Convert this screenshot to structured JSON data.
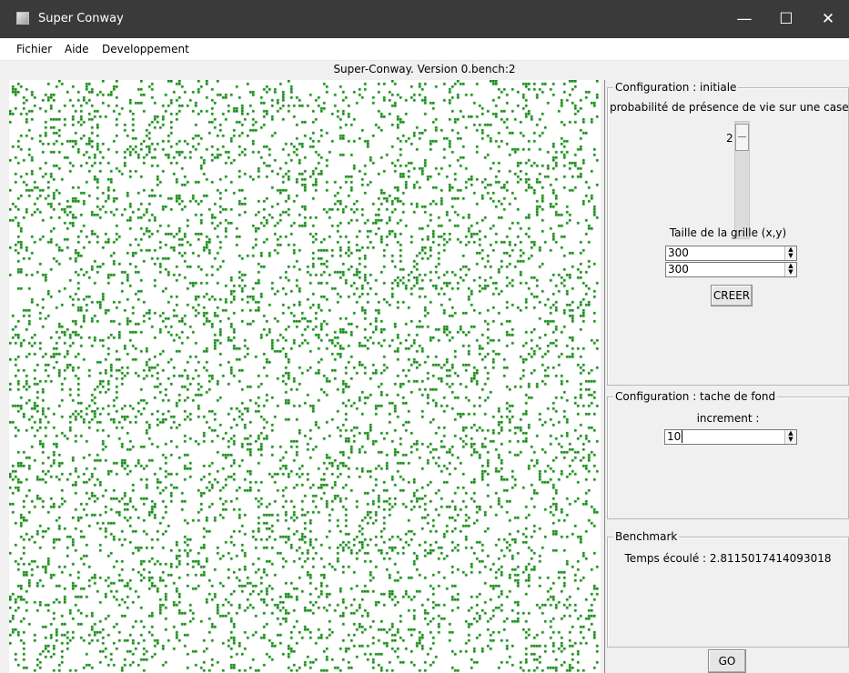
{
  "window": {
    "title": "Super Conway",
    "icon": "app-icon",
    "controls": [
      "minimize-icon",
      "maximize-icon",
      "close-icon"
    ],
    "minimize_glyph": "—",
    "maximize_glyph": "☐",
    "close_glyph": "✕"
  },
  "menu": {
    "items": [
      "Fichier",
      "Aide",
      "Developpement"
    ]
  },
  "version_label": "Super-Conway. Version 0.bench:2",
  "grid": {
    "live_color": "#008000",
    "dead_color": "#ffffff"
  },
  "config_initiale": {
    "title": "Configuration : initiale",
    "probability_label": "probabilité de présence de vie sur une case (%",
    "scale_value": "2",
    "scale_fraction": 0.02,
    "grid_size_label": "Taille de la grille (x,y)",
    "x_value": "300",
    "y_value": "300",
    "create_button": "CREER"
  },
  "config_fond": {
    "title": "Configuration : tache de fond",
    "increment_label": "increment :",
    "increment_value": "10"
  },
  "benchmark": {
    "title": "Benchmark",
    "elapsed_text": "Temps écoulé : 2.8115017414093018"
  },
  "go_button": "GO"
}
